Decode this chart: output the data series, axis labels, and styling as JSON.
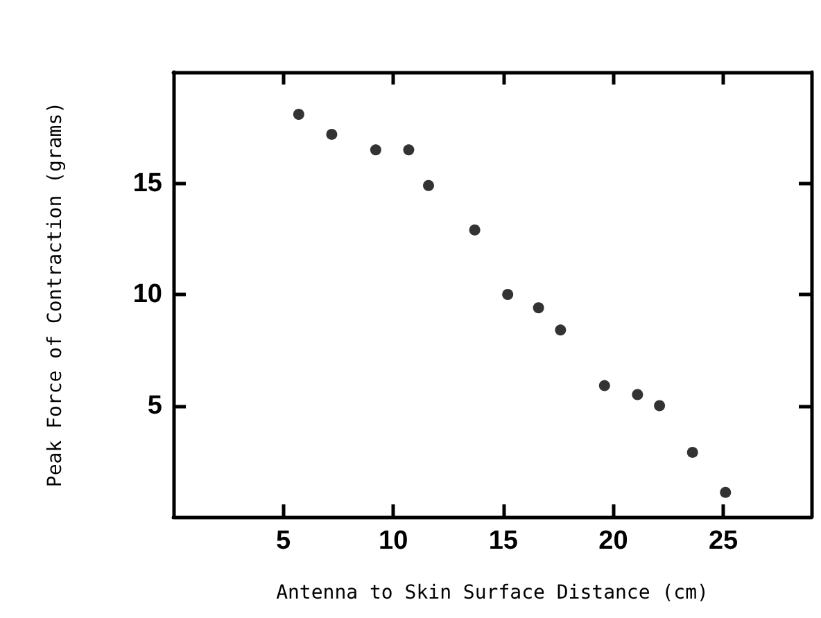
{
  "chart_data": {
    "type": "scatter",
    "xlabel": "Antenna to Skin Surface Distance (cm)",
    "ylabel": "Peak Force of Contraction (grams)",
    "x": [
      5.7,
      7.2,
      9.2,
      10.7,
      11.6,
      13.7,
      15.2,
      16.6,
      17.6,
      19.6,
      21.1,
      22.1,
      23.6,
      25.1
    ],
    "values": [
      18.1,
      17.2,
      16.5,
      16.5,
      14.9,
      12.9,
      10.0,
      9.4,
      8.4,
      5.9,
      5.5,
      5.0,
      2.9,
      1.1
    ],
    "color": "#000000",
    "marker": "circle",
    "xlim": [
      0,
      29
    ],
    "xticks": [
      5,
      10,
      15,
      20,
      25
    ],
    "ylim": [
      0,
      20
    ],
    "yticks": [
      5,
      10,
      15
    ],
    "grid": false
  }
}
